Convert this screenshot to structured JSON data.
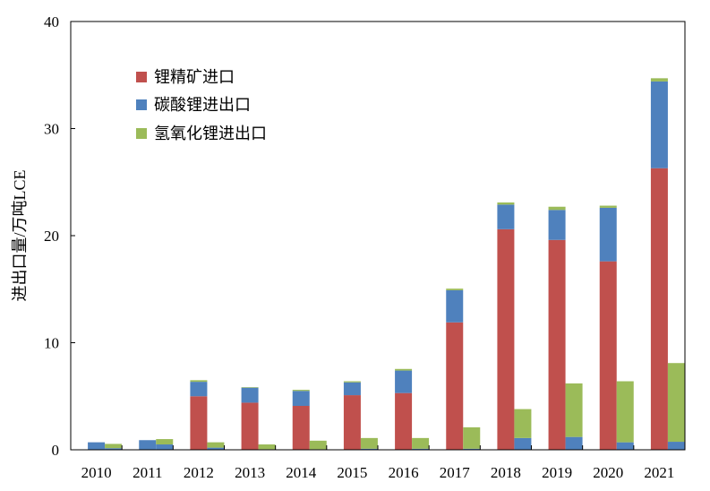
{
  "chart_data": {
    "type": "bar",
    "stacked": true,
    "bars_per_category": 2,
    "title": "",
    "xlabel": "",
    "ylabel": "进出口量/万吨LCE",
    "ylim": [
      0,
      40
    ],
    "yticks": [
      0,
      10,
      20,
      30,
      40
    ],
    "grid": false,
    "legend": "top-left",
    "categories": [
      "2010",
      "2011",
      "2012",
      "2013",
      "2014",
      "2015",
      "2016",
      "2017",
      "2018",
      "2019",
      "2020",
      "2021"
    ],
    "series": [
      {
        "name": "锂精矿进口",
        "color": "#c0504d",
        "left_bar": [
          0,
          0,
          5.0,
          4.4,
          4.1,
          5.1,
          5.3,
          11.9,
          20.6,
          19.6,
          17.6,
          26.3
        ],
        "right_bar": [
          0,
          0,
          0,
          0,
          0,
          0,
          0,
          0,
          0,
          0,
          0,
          0
        ]
      },
      {
        "name": "碳酸锂进出口",
        "color": "#4f81bd",
        "left_bar": [
          0.7,
          0.9,
          1.35,
          1.4,
          1.4,
          1.2,
          2.1,
          3.0,
          2.3,
          2.8,
          5.0,
          8.1
        ],
        "right_bar": [
          0.15,
          0.5,
          0.2,
          0.05,
          0.05,
          0.1,
          0.1,
          0.1,
          1.1,
          1.2,
          0.7,
          0.75
        ]
      },
      {
        "name": "氢氧化锂进出口",
        "color": "#9bbb59",
        "left_bar": [
          0,
          0,
          0.15,
          0.05,
          0.1,
          0.1,
          0.15,
          0.15,
          0.2,
          0.3,
          0.2,
          0.3
        ],
        "right_bar": [
          0.4,
          0.5,
          0.5,
          0.45,
          0.8,
          1.0,
          1.0,
          2.0,
          2.7,
          5.0,
          5.7,
          7.35
        ]
      }
    ]
  }
}
